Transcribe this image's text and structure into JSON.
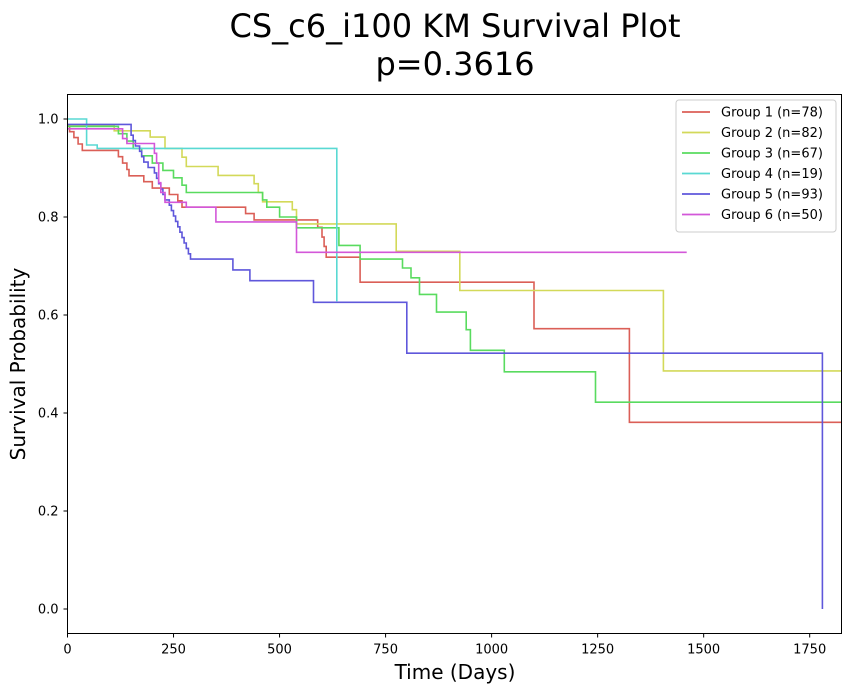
{
  "chart_data": {
    "type": "line",
    "title": "CS_c6_i100 KM Survival Plot",
    "subtitle": "p=0.3616",
    "xlabel": "Time (Days)",
    "ylabel": "Survival Probability",
    "xlim": [
      0,
      1825
    ],
    "ylim": [
      -0.05,
      1.05
    ],
    "xticks": [
      0,
      250,
      500,
      750,
      1000,
      1250,
      1500,
      1750
    ],
    "xtick_labels": [
      "0",
      "250",
      "500",
      "750",
      "1000",
      "1250",
      "1500",
      "1750"
    ],
    "yticks": [
      0.0,
      0.2,
      0.4,
      0.6,
      0.8,
      1.0
    ],
    "ytick_labels": [
      "0.0",
      "0.2",
      "0.4",
      "0.6",
      "0.8",
      "1.0"
    ],
    "grid": false,
    "legend_position": "top-right",
    "series": [
      {
        "name": "Group 1 (n=78)",
        "color": "#db5f57",
        "steps": [
          [
            0,
            0.987
          ],
          [
            5,
            0.974
          ],
          [
            15,
            0.962
          ],
          [
            25,
            0.949
          ],
          [
            35,
            0.936
          ],
          [
            60,
            0.936
          ],
          [
            120,
            0.923
          ],
          [
            130,
            0.91
          ],
          [
            140,
            0.897
          ],
          [
            145,
            0.884
          ],
          [
            180,
            0.872
          ],
          [
            200,
            0.859
          ],
          [
            240,
            0.846
          ],
          [
            260,
            0.833
          ],
          [
            270,
            0.82
          ],
          [
            420,
            0.807
          ],
          [
            440,
            0.794
          ],
          [
            590,
            0.779
          ],
          [
            600,
            0.759
          ],
          [
            605,
            0.74
          ],
          [
            610,
            0.718
          ],
          [
            690,
            0.667
          ],
          [
            1100,
            0.572
          ],
          [
            1325,
            0.381
          ],
          [
            1825,
            0.381
          ]
        ]
      },
      {
        "name": "Group 2 (n=82)",
        "color": "#d3d959",
        "steps": [
          [
            0,
            0.988
          ],
          [
            110,
            0.976
          ],
          [
            195,
            0.963
          ],
          [
            230,
            0.94
          ],
          [
            270,
            0.922
          ],
          [
            280,
            0.903
          ],
          [
            355,
            0.885
          ],
          [
            440,
            0.868
          ],
          [
            450,
            0.85
          ],
          [
            460,
            0.831
          ],
          [
            530,
            0.815
          ],
          [
            540,
            0.786
          ],
          [
            775,
            0.73
          ],
          [
            925,
            0.65
          ],
          [
            1405,
            0.486
          ],
          [
            1825,
            0.486
          ]
        ]
      },
      {
        "name": "Group 3 (n=67)",
        "color": "#59db5f",
        "steps": [
          [
            0,
            0.985
          ],
          [
            120,
            0.97
          ],
          [
            140,
            0.955
          ],
          [
            155,
            0.94
          ],
          [
            175,
            0.925
          ],
          [
            200,
            0.91
          ],
          [
            225,
            0.895
          ],
          [
            250,
            0.88
          ],
          [
            270,
            0.865
          ],
          [
            280,
            0.85
          ],
          [
            460,
            0.835
          ],
          [
            470,
            0.82
          ],
          [
            500,
            0.8
          ],
          [
            540,
            0.778
          ],
          [
            640,
            0.742
          ],
          [
            690,
            0.714
          ],
          [
            790,
            0.696
          ],
          [
            810,
            0.676
          ],
          [
            830,
            0.642
          ],
          [
            870,
            0.606
          ],
          [
            940,
            0.57
          ],
          [
            950,
            0.528
          ],
          [
            1030,
            0.484
          ],
          [
            1245,
            0.422
          ],
          [
            1825,
            0.422
          ]
        ]
      },
      {
        "name": "Group 4 (n=19)",
        "color": "#59d9d3",
        "steps": [
          [
            0,
            1.0
          ],
          [
            45,
            0.947
          ],
          [
            60,
            0.947
          ],
          [
            70,
            0.94
          ],
          [
            635,
            0.628
          ]
        ]
      },
      {
        "name": "Group 5 (n=93)",
        "color": "#5f57db",
        "steps": [
          [
            0,
            0.989
          ],
          [
            150,
            0.967
          ],
          [
            155,
            0.956
          ],
          [
            160,
            0.945
          ],
          [
            170,
            0.934
          ],
          [
            175,
            0.923
          ],
          [
            180,
            0.912
          ],
          [
            190,
            0.901
          ],
          [
            205,
            0.89
          ],
          [
            210,
            0.879
          ],
          [
            215,
            0.868
          ],
          [
            220,
            0.857
          ],
          [
            225,
            0.846
          ],
          [
            230,
            0.835
          ],
          [
            240,
            0.824
          ],
          [
            245,
            0.813
          ],
          [
            250,
            0.802
          ],
          [
            255,
            0.791
          ],
          [
            260,
            0.78
          ],
          [
            265,
            0.769
          ],
          [
            270,
            0.758
          ],
          [
            275,
            0.747
          ],
          [
            280,
            0.736
          ],
          [
            285,
            0.725
          ],
          [
            290,
            0.714
          ],
          [
            390,
            0.692
          ],
          [
            430,
            0.67
          ],
          [
            580,
            0.626
          ],
          [
            800,
            0.522
          ],
          [
            1780,
            0.0
          ]
        ]
      },
      {
        "name": "Group 6 (n=50)",
        "color": "#d357d9",
        "steps": [
          [
            0,
            0.98
          ],
          [
            130,
            0.96
          ],
          [
            140,
            0.95
          ],
          [
            205,
            0.93
          ],
          [
            210,
            0.91
          ],
          [
            215,
            0.87
          ],
          [
            220,
            0.85
          ],
          [
            230,
            0.83
          ],
          [
            280,
            0.82
          ],
          [
            350,
            0.79
          ],
          [
            540,
            0.728
          ],
          [
            1460,
            0.728
          ]
        ]
      }
    ]
  }
}
